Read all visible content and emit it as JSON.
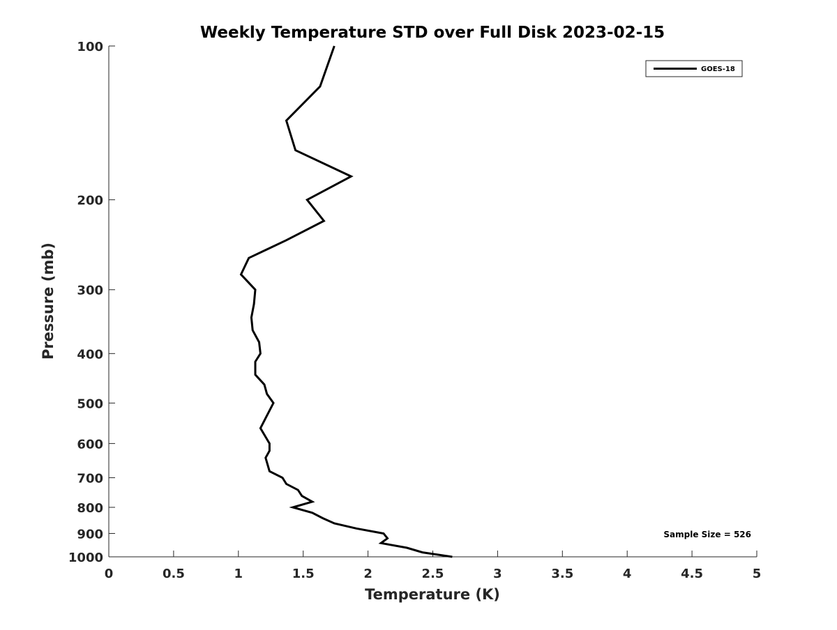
{
  "chart_data": {
    "type": "line",
    "title": "Weekly Temperature STD over Full Disk 2023-02-15",
    "xlabel": "Temperature (K)",
    "ylabel": "Pressure (mb)",
    "xlim": [
      0,
      5
    ],
    "ylim": [
      100,
      1000
    ],
    "yscale": "log",
    "yreverse": true,
    "xticks": [
      0,
      0.5,
      1,
      1.5,
      2,
      2.5,
      3,
      3.5,
      4,
      4.5,
      5
    ],
    "xtick_labels": [
      "0",
      "0.5",
      "1",
      "1.5",
      "2",
      "2.5",
      "3",
      "3.5",
      "4",
      "4.5",
      "5"
    ],
    "yticks": [
      100,
      200,
      300,
      400,
      500,
      600,
      700,
      800,
      900,
      1000
    ],
    "ytick_labels": [
      "100",
      "200",
      "300",
      "400",
      "500",
      "600",
      "700",
      "800",
      "900",
      "1000"
    ],
    "grid": false,
    "legend": {
      "placement": "top-right",
      "entries": [
        "GOES-18"
      ]
    },
    "annotation": "Sample Size = 526",
    "series": [
      {
        "name": "GOES-18",
        "color": "#000000",
        "temperature": [
          1.74,
          1.63,
          1.37,
          1.44,
          1.87,
          1.53,
          1.66,
          1.37,
          1.08,
          1.02,
          1.13,
          1.12,
          1.1,
          1.11,
          1.16,
          1.17,
          1.13,
          1.13,
          1.2,
          1.22,
          1.27,
          1.17,
          1.24,
          1.24,
          1.21,
          1.24,
          1.34,
          1.37,
          1.46,
          1.49,
          1.57,
          1.42,
          1.57,
          1.65,
          1.74,
          1.91,
          2.12,
          2.15,
          2.1,
          2.3,
          2.42,
          2.65
        ],
        "pressure": [
          100,
          120,
          140,
          160,
          180,
          200,
          220,
          240,
          260,
          280,
          300,
          320,
          340,
          360,
          380,
          400,
          415,
          440,
          460,
          480,
          500,
          560,
          600,
          620,
          640,
          680,
          700,
          720,
          740,
          760,
          780,
          800,
          820,
          840,
          860,
          880,
          900,
          920,
          940,
          960,
          980,
          1000
        ]
      }
    ]
  }
}
